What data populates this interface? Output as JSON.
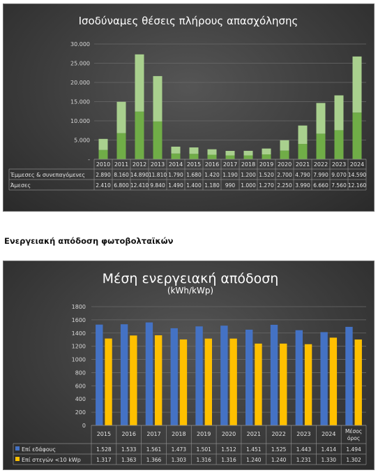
{
  "heading": "Ενεργειακή απόδοση φωτοβολταϊκών",
  "chart_data": [
    {
      "type": "bar",
      "stacked": true,
      "title": "Ισοδύναμες θέσεις πλήρους απασχόλησης",
      "categories": [
        "2010",
        "2011",
        "2012",
        "2013",
        "2014",
        "2015",
        "2016",
        "2017",
        "2018",
        "2019",
        "2020",
        "2021",
        "2022",
        "2023",
        "2024"
      ],
      "series": [
        {
          "name": "Έμμεσες & συνεπαγόμενες",
          "color": "#a9d08e",
          "values": [
            2890,
            8160,
            14890,
            11810,
            1790,
            1680,
            1420,
            1190,
            1200,
            1520,
            2700,
            4790,
            7990,
            9070,
            14590
          ],
          "labels": [
            "2.890",
            "8.160",
            "14.890",
            "11.810",
            "1.790",
            "1.680",
            "1.420",
            "1.190",
            "1.200",
            "1.520",
            "2.700",
            "4.790",
            "7.990",
            "9.070",
            "14.590"
          ]
        },
        {
          "name": "Άμεσες",
          "color": "#70ad47",
          "values": [
            2410,
            6800,
            12410,
            9840,
            1490,
            1400,
            1180,
            990,
            1000,
            1270,
            2250,
            3990,
            6660,
            7560,
            12160
          ],
          "labels": [
            "2.410",
            "6.800",
            "12.410",
            "9.840",
            "1.490",
            "1.400",
            "1.180",
            "990",
            "1.000",
            "1.270",
            "2.250",
            "3.990",
            "6.660",
            "7.560",
            "12.160"
          ]
        }
      ],
      "yticks": [
        "-",
        "5.000",
        "10.000",
        "15.000",
        "20.000",
        "25.000",
        "30.000"
      ],
      "ylim": [
        0,
        30000
      ],
      "grid": true,
      "data_table": true
    },
    {
      "type": "bar",
      "title": "Μέση ενεργειακή απόδοση",
      "subtitle": "(kWh/kWp)",
      "categories": [
        "2015",
        "2016",
        "2017",
        "2018",
        "2019",
        "2020",
        "2021",
        "2022",
        "2023",
        "2024",
        "Μέσος όρος"
      ],
      "series": [
        {
          "name": "Επί εδάφους",
          "color": "#4472c4",
          "values": [
            1528,
            1533,
            1561,
            1473,
            1501,
            1512,
            1451,
            1525,
            1443,
            1414,
            1494
          ],
          "labels": [
            "1.528",
            "1.533",
            "1.561",
            "1.473",
            "1.501",
            "1.512",
            "1.451",
            "1.525",
            "1.443",
            "1.414",
            "1.494"
          ]
        },
        {
          "name": "Επί στεγών <10 kWp",
          "color": "#ffc000",
          "values": [
            1317,
            1363,
            1366,
            1303,
            1316,
            1316,
            1240,
            1240,
            1231,
            1330,
            1302
          ],
          "labels": [
            "1.317",
            "1.363",
            "1.366",
            "1.303",
            "1.316",
            "1.316",
            "1.240",
            "1.240",
            "1.231",
            "1.330",
            "1.302"
          ]
        }
      ],
      "yticks": [
        "0",
        "200",
        "400",
        "600",
        "800",
        "1000",
        "1200",
        "1400",
        "1600",
        "1800"
      ],
      "ylim": [
        0,
        1800
      ],
      "grid": true,
      "data_table": true
    }
  ]
}
